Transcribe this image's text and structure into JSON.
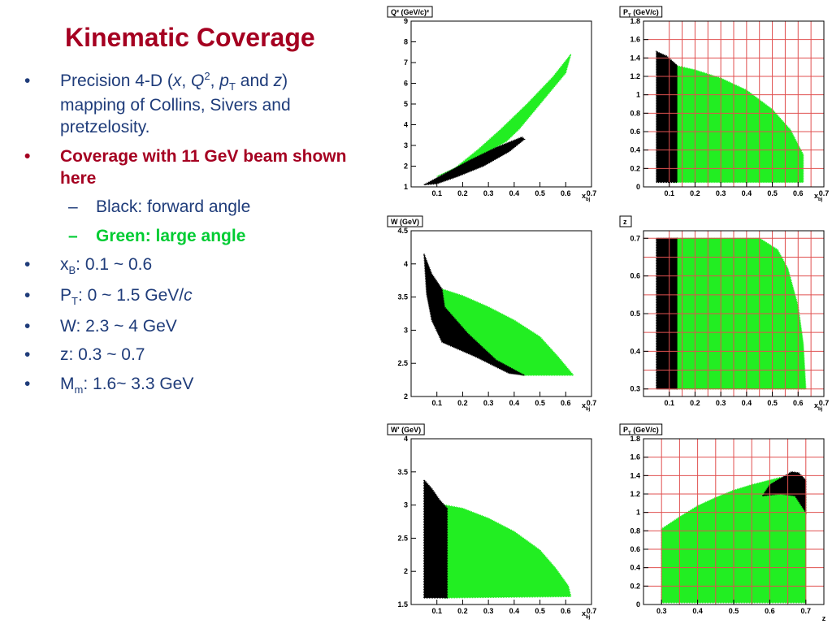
{
  "slide": {
    "title": "Kinematic Coverage",
    "bullets": {
      "b1_pre": "Precision 4-D (",
      "b1_x": "x",
      "b1_comma1": ", ",
      "b1_Q": "Q",
      "b1_sup": "2",
      "b1_comma2": ", ",
      "b1_p": "p",
      "b1_T": "T",
      "b1_and": " and ",
      "b1_z": "z",
      "b1_post": ") mapping of Collins, Sivers and pretzelosity.",
      "b2": "Coverage with 11 GeV beam shown here",
      "s1": "Black: forward angle",
      "s2": "Green: large angle",
      "b3_pre": "x",
      "b3_sub": "B",
      "b3_post": ": 0.1 ~ 0.6",
      "b4_pre": "P",
      "b4_sub": "T",
      "b4_mid": ": 0 ~ 1.5 GeV/",
      "b4_c": "c",
      "b5": "W: 2.3 ~ 4 GeV",
      "b6": "z: 0.3 ~ 0.7",
      "b7_pre": "M",
      "b7_sub": "m",
      "b7_post": ": 1.6~ 3.3 GeV",
      "dot": "•",
      "dash": "–"
    }
  },
  "colors": {
    "green": "#22ee22",
    "black": "#000000",
    "grid": "#e05050",
    "title": "#a50021",
    "text": "#1f3c7a"
  },
  "chart_data": [
    {
      "id": "q2",
      "type": "scatter",
      "title": "Q² (GeV/c)²",
      "xlabel": "x_bj",
      "xlim": [
        0,
        0.7
      ],
      "ylim": [
        1,
        9
      ],
      "xticks": [
        0.1,
        0.2,
        0.3,
        0.4,
        0.5,
        0.6,
        0.7
      ],
      "yticks": [
        1,
        2,
        3,
        4,
        5,
        6,
        7,
        8,
        9
      ],
      "grid": false,
      "series": [
        {
          "color": "green",
          "polygon": [
            [
              0.1,
              1.5
            ],
            [
              0.17,
              1.9
            ],
            [
              0.26,
              2.8
            ],
            [
              0.35,
              3.8
            ],
            [
              0.45,
              5.0
            ],
            [
              0.55,
              6.3
            ],
            [
              0.62,
              7.4
            ],
            [
              0.6,
              6.5
            ],
            [
              0.5,
              5.0
            ],
            [
              0.42,
              3.8
            ],
            [
              0.37,
              3.2
            ],
            [
              0.3,
              2.7
            ],
            [
              0.2,
              2.0
            ],
            [
              0.12,
              1.6
            ]
          ]
        },
        {
          "color": "black",
          "polygon": [
            [
              0.05,
              1.1
            ],
            [
              0.08,
              1.3
            ],
            [
              0.14,
              1.7
            ],
            [
              0.23,
              2.3
            ],
            [
              0.33,
              2.9
            ],
            [
              0.43,
              3.4
            ],
            [
              0.44,
              3.3
            ],
            [
              0.38,
              2.7
            ],
            [
              0.28,
              2.0
            ],
            [
              0.18,
              1.5
            ],
            [
              0.1,
              1.15
            ]
          ]
        }
      ]
    },
    {
      "id": "pt_xbj",
      "type": "scatter",
      "title": "P_T (GeV/c)",
      "xlabel": "x_bj",
      "xlim": [
        0,
        0.7
      ],
      "ylim": [
        0,
        1.8
      ],
      "xticks": [
        0.1,
        0.2,
        0.3,
        0.4,
        0.5,
        0.6,
        0.7
      ],
      "yticks": [
        0,
        0.2,
        0.4,
        0.6,
        0.8,
        1,
        1.2,
        1.4,
        1.6,
        1.8
      ],
      "grid": true,
      "grid_x": [
        0.1,
        0.15,
        0.2,
        0.25,
        0.3,
        0.35,
        0.4,
        0.45,
        0.5,
        0.55,
        0.6,
        0.65
      ],
      "grid_y": [
        0,
        0.2,
        0.4,
        0.6,
        0.8,
        1,
        1.2,
        1.4,
        1.6,
        1.8
      ],
      "series": [
        {
          "color": "green",
          "polygon": [
            [
              0.12,
              0.05
            ],
            [
              0.12,
              1.32
            ],
            [
              0.2,
              1.27
            ],
            [
              0.3,
              1.18
            ],
            [
              0.4,
              1.05
            ],
            [
              0.5,
              0.84
            ],
            [
              0.57,
              0.62
            ],
            [
              0.62,
              0.35
            ],
            [
              0.62,
              0.05
            ]
          ]
        },
        {
          "color": "black",
          "polygon": [
            [
              0.05,
              0.05
            ],
            [
              0.05,
              1.47
            ],
            [
              0.09,
              1.42
            ],
            [
              0.13,
              1.32
            ],
            [
              0.13,
              0.05
            ]
          ]
        }
      ]
    },
    {
      "id": "w",
      "type": "scatter",
      "title": "W (GeV)",
      "xlabel": "x_bj",
      "xlim": [
        0,
        0.7
      ],
      "ylim": [
        2,
        4.5
      ],
      "xticks": [
        0.1,
        0.2,
        0.3,
        0.4,
        0.5,
        0.6,
        0.7
      ],
      "yticks": [
        2,
        2.5,
        3,
        3.5,
        4,
        4.5
      ],
      "grid": false,
      "series": [
        {
          "color": "green",
          "polygon": [
            [
              0.12,
              3.62
            ],
            [
              0.2,
              3.52
            ],
            [
              0.3,
              3.35
            ],
            [
              0.4,
              3.15
            ],
            [
              0.5,
              2.9
            ],
            [
              0.57,
              2.6
            ],
            [
              0.63,
              2.32
            ],
            [
              0.43,
              2.32
            ],
            [
              0.33,
              2.55
            ],
            [
              0.22,
              2.95
            ],
            [
              0.13,
              3.35
            ]
          ]
        },
        {
          "color": "black",
          "polygon": [
            [
              0.05,
              4.15
            ],
            [
              0.08,
              3.85
            ],
            [
              0.12,
              3.62
            ],
            [
              0.13,
              3.35
            ],
            [
              0.22,
              2.95
            ],
            [
              0.33,
              2.55
            ],
            [
              0.44,
              2.32
            ],
            [
              0.38,
              2.35
            ],
            [
              0.25,
              2.6
            ],
            [
              0.12,
              2.82
            ],
            [
              0.08,
              3.15
            ],
            [
              0.06,
              3.55
            ]
          ]
        }
      ]
    },
    {
      "id": "z",
      "type": "scatter",
      "title": "z",
      "xlabel": "x_bj",
      "xlim": [
        0,
        0.7
      ],
      "ylim": [
        0.28,
        0.72
      ],
      "xticks": [
        0.1,
        0.2,
        0.3,
        0.4,
        0.5,
        0.6,
        0.7
      ],
      "yticks": [
        0.3,
        0.4,
        0.5,
        0.6,
        0.7
      ],
      "grid": true,
      "grid_x": [
        0.1,
        0.15,
        0.2,
        0.25,
        0.3,
        0.35,
        0.4,
        0.45,
        0.5,
        0.55,
        0.6,
        0.65
      ],
      "grid_y": [
        0.3,
        0.35,
        0.4,
        0.45,
        0.5,
        0.55,
        0.6,
        0.65,
        0.7
      ],
      "series": [
        {
          "color": "green",
          "polygon": [
            [
              0.12,
              0.3
            ],
            [
              0.12,
              0.7
            ],
            [
              0.45,
              0.7
            ],
            [
              0.52,
              0.67
            ],
            [
              0.56,
              0.62
            ],
            [
              0.6,
              0.52
            ],
            [
              0.62,
              0.42
            ],
            [
              0.63,
              0.3
            ]
          ]
        },
        {
          "color": "black",
          "polygon": [
            [
              0.05,
              0.3
            ],
            [
              0.05,
              0.7
            ],
            [
              0.13,
              0.7
            ],
            [
              0.13,
              0.3
            ]
          ]
        }
      ]
    },
    {
      "id": "w_prime",
      "type": "scatter",
      "title": "W' (GeV)",
      "xlabel": "x_bj",
      "xlim": [
        0,
        0.7
      ],
      "ylim": [
        1.5,
        4
      ],
      "xticks": [
        0.1,
        0.2,
        0.3,
        0.4,
        0.5,
        0.6,
        0.7
      ],
      "yticks": [
        1.5,
        2,
        2.5,
        3,
        3.5,
        4
      ],
      "grid": false,
      "series": [
        {
          "color": "green",
          "polygon": [
            [
              0.13,
              1.6
            ],
            [
              0.13,
              3.0
            ],
            [
              0.2,
              2.95
            ],
            [
              0.3,
              2.8
            ],
            [
              0.4,
              2.6
            ],
            [
              0.5,
              2.32
            ],
            [
              0.56,
              2.05
            ],
            [
              0.61,
              1.78
            ],
            [
              0.62,
              1.62
            ]
          ]
        },
        {
          "color": "black",
          "polygon": [
            [
              0.05,
              1.6
            ],
            [
              0.05,
              3.38
            ],
            [
              0.08,
              3.25
            ],
            [
              0.11,
              3.08
            ],
            [
              0.14,
              2.95
            ],
            [
              0.14,
              1.6
            ]
          ]
        }
      ]
    },
    {
      "id": "pt_z",
      "type": "scatter",
      "title": "P_T (GeV/c)",
      "xlabel": "z",
      "xlim": [
        0.25,
        0.75
      ],
      "ylim": [
        0,
        1.8
      ],
      "xticks": [
        0.3,
        0.4,
        0.5,
        0.6,
        0.7
      ],
      "yticks": [
        0,
        0.2,
        0.4,
        0.6,
        0.8,
        1,
        1.2,
        1.4,
        1.6,
        1.8
      ],
      "grid": true,
      "grid_x": [
        0.3,
        0.35,
        0.4,
        0.45,
        0.5,
        0.55,
        0.6,
        0.65,
        0.7
      ],
      "grid_y": [
        0,
        0.2,
        0.4,
        0.6,
        0.8,
        1,
        1.2,
        1.4,
        1.6,
        1.8
      ],
      "series": [
        {
          "color": "green",
          "polygon": [
            [
              0.3,
              0.02
            ],
            [
              0.3,
              0.82
            ],
            [
              0.35,
              0.95
            ],
            [
              0.4,
              1.07
            ],
            [
              0.45,
              1.16
            ],
            [
              0.5,
              1.24
            ],
            [
              0.55,
              1.3
            ],
            [
              0.6,
              1.35
            ],
            [
              0.63,
              1.38
            ],
            [
              0.66,
              1.34
            ],
            [
              0.7,
              1.2
            ],
            [
              0.7,
              0.02
            ]
          ]
        },
        {
          "color": "black",
          "polygon": [
            [
              0.58,
              1.18
            ],
            [
              0.6,
              1.3
            ],
            [
              0.63,
              1.37
            ],
            [
              0.66,
              1.44
            ],
            [
              0.68,
              1.43
            ],
            [
              0.7,
              1.35
            ],
            [
              0.7,
              1.0
            ],
            [
              0.67,
              1.18
            ],
            [
              0.63,
              1.2
            ]
          ]
        }
      ]
    }
  ]
}
